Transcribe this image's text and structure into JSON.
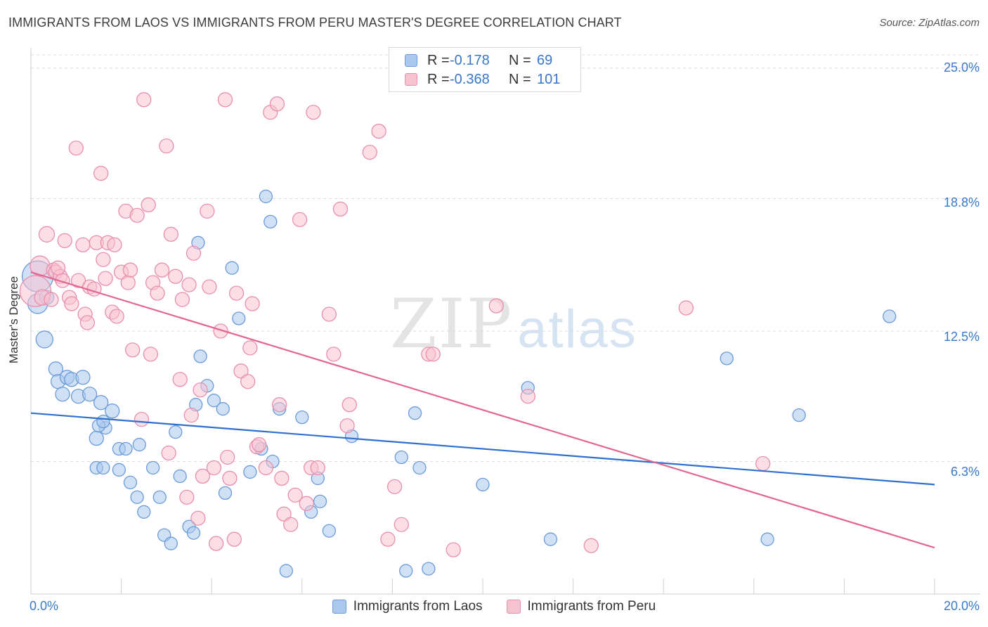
{
  "title": "IMMIGRANTS FROM LAOS VS IMMIGRANTS FROM PERU MASTER'S DEGREE CORRELATION CHART",
  "source": "Source: ZipAtlas.com",
  "watermark": {
    "zip": "ZIP",
    "atlas": "atlas"
  },
  "legend": {
    "rows": [
      {
        "r_label": "R =",
        "r_value": "-0.178",
        "n_label": "N =",
        "n_value": "69",
        "color": "#aac8ef",
        "border": "#6b9bd8"
      },
      {
        "r_label": "R =",
        "r_value": "-0.368",
        "n_label": "N =",
        "n_value": "101",
        "color": "#f7c2d2",
        "border": "#e98fac"
      }
    ]
  },
  "bottom_legend": [
    {
      "label": "Immigrants from Laos",
      "color": "#aac8ef",
      "border": "#6b9bd8"
    },
    {
      "label": "Immigrants from Peru",
      "color": "#f7c2d2",
      "border": "#e98fac"
    }
  ],
  "chart_data": {
    "type": "scatter",
    "title": "IMMIGRANTS FROM LAOS VS IMMIGRANTS FROM PERU MASTER'S DEGREE CORRELATION CHART",
    "xlabel": "",
    "ylabel": "Master's Degree",
    "xlim": [
      0,
      20
    ],
    "ylim": [
      0,
      25.9
    ],
    "x_tick_labels": [
      "0.0%",
      "20.0%"
    ],
    "y_ticks": [
      6.3,
      12.5,
      18.8,
      25.0
    ],
    "y_tick_labels": [
      "6.3%",
      "12.5%",
      "18.8%",
      "25.0%"
    ],
    "grid": true,
    "legend_position": "top-center",
    "series": [
      {
        "name": "Immigrants from Laos",
        "color": "#aac8ef",
        "stroke": "#6b9bd8",
        "line_color": "#2f6fd0",
        "trend": [
          [
            0,
            8.6
          ],
          [
            20,
            5.2
          ]
        ],
        "points": [
          [
            0.15,
            15.1,
            22
          ],
          [
            0.15,
            13.8,
            14
          ],
          [
            0.3,
            12.1,
            12
          ],
          [
            0.35,
            14.1,
            10
          ],
          [
            0.55,
            10.7,
            10
          ],
          [
            0.6,
            10.1,
            10
          ],
          [
            0.7,
            9.5,
            10
          ],
          [
            0.8,
            10.3,
            10
          ],
          [
            0.9,
            10.2,
            10
          ],
          [
            1.15,
            10.3,
            10
          ],
          [
            1.05,
            9.4,
            10
          ],
          [
            1.3,
            9.5,
            10
          ],
          [
            1.55,
            9.1,
            10
          ],
          [
            1.8,
            8.7,
            10
          ],
          [
            1.45,
            7.4,
            10
          ],
          [
            1.45,
            6.0,
            9
          ],
          [
            1.6,
            6.0,
            9
          ],
          [
            1.65,
            7.9,
            9
          ],
          [
            1.5,
            8.0,
            9
          ],
          [
            1.6,
            8.2,
            9
          ],
          [
            1.95,
            6.9,
            9
          ],
          [
            1.95,
            5.9,
            9
          ],
          [
            2.1,
            6.9,
            9
          ],
          [
            2.2,
            5.3,
            9
          ],
          [
            2.35,
            4.6,
            9
          ],
          [
            2.5,
            3.9,
            9
          ],
          [
            2.4,
            7.1,
            9
          ],
          [
            2.7,
            6.0,
            9
          ],
          [
            2.85,
            4.6,
            9
          ],
          [
            2.95,
            2.8,
            9
          ],
          [
            3.1,
            2.4,
            9
          ],
          [
            3.2,
            7.7,
            9
          ],
          [
            3.3,
            5.6,
            9
          ],
          [
            3.5,
            3.2,
            9
          ],
          [
            3.6,
            2.9,
            9
          ],
          [
            3.65,
            9.0,
            9
          ],
          [
            3.75,
            11.3,
            9
          ],
          [
            3.9,
            9.9,
            9
          ],
          [
            3.7,
            16.7,
            9
          ],
          [
            4.05,
            9.2,
            9
          ],
          [
            4.25,
            8.8,
            9
          ],
          [
            4.3,
            4.8,
            9
          ],
          [
            4.45,
            15.5,
            9
          ],
          [
            4.6,
            13.1,
            9
          ],
          [
            4.85,
            5.8,
            9
          ],
          [
            5.1,
            6.9,
            9
          ],
          [
            5.2,
            18.9,
            9
          ],
          [
            5.3,
            17.7,
            9
          ],
          [
            5.35,
            6.3,
            9
          ],
          [
            5.5,
            8.8,
            9
          ],
          [
            5.65,
            1.1,
            9
          ],
          [
            6.0,
            8.4,
            9
          ],
          [
            6.2,
            3.9,
            9
          ],
          [
            6.35,
            5.5,
            9
          ],
          [
            6.4,
            4.4,
            9
          ],
          [
            6.6,
            3.0,
            9
          ],
          [
            7.1,
            7.5,
            9
          ],
          [
            8.2,
            6.5,
            9
          ],
          [
            8.3,
            1.1,
            9
          ],
          [
            8.5,
            8.6,
            9
          ],
          [
            8.6,
            6.0,
            9
          ],
          [
            8.8,
            1.2,
            9
          ],
          [
            10.0,
            5.2,
            9
          ],
          [
            11.0,
            9.8,
            9
          ],
          [
            11.5,
            2.6,
            9
          ],
          [
            15.4,
            11.2,
            9
          ],
          [
            16.3,
            2.6,
            9
          ],
          [
            17.0,
            8.5,
            9
          ],
          [
            19.0,
            13.2,
            9
          ]
        ]
      },
      {
        "name": "Immigrants from Peru",
        "color": "#f7c2d2",
        "stroke": "#e98fac",
        "line_color": "#e36592",
        "trend": [
          [
            0,
            15.3
          ],
          [
            20,
            2.2
          ]
        ],
        "points": [
          [
            0.1,
            14.4,
            22
          ],
          [
            0.2,
            15.6,
            14
          ],
          [
            0.25,
            14.1,
            11
          ],
          [
            0.35,
            17.1,
            11
          ],
          [
            0.5,
            15.4,
            10
          ],
          [
            0.55,
            15.3,
            10
          ],
          [
            0.65,
            15.1,
            10
          ],
          [
            0.7,
            14.9,
            10
          ],
          [
            0.75,
            16.8,
            10
          ],
          [
            0.85,
            14.1,
            10
          ],
          [
            0.9,
            13.8,
            10
          ],
          [
            1.0,
            21.2,
            10
          ],
          [
            1.05,
            14.9,
            10
          ],
          [
            1.15,
            16.6,
            10
          ],
          [
            1.2,
            13.3,
            10
          ],
          [
            1.25,
            12.9,
            10
          ],
          [
            1.3,
            14.6,
            10
          ],
          [
            1.4,
            14.5,
            10
          ],
          [
            1.45,
            16.7,
            10
          ],
          [
            1.55,
            20.0,
            10
          ],
          [
            1.6,
            15.9,
            10
          ],
          [
            1.65,
            15.0,
            10
          ],
          [
            1.7,
            16.7,
            10
          ],
          [
            1.8,
            13.4,
            10
          ],
          [
            1.85,
            16.6,
            10
          ],
          [
            1.9,
            13.2,
            10
          ],
          [
            2.0,
            15.3,
            10
          ],
          [
            2.1,
            18.2,
            10
          ],
          [
            2.15,
            14.8,
            10
          ],
          [
            2.2,
            15.4,
            10
          ],
          [
            2.25,
            11.6,
            10
          ],
          [
            2.35,
            18.0,
            10
          ],
          [
            2.45,
            8.3,
            10
          ],
          [
            2.5,
            23.5,
            10
          ],
          [
            2.6,
            18.5,
            10
          ],
          [
            2.65,
            11.4,
            10
          ],
          [
            2.7,
            14.8,
            10
          ],
          [
            2.8,
            14.3,
            10
          ],
          [
            2.9,
            15.4,
            10
          ],
          [
            3.0,
            21.3,
            10
          ],
          [
            3.05,
            6.7,
            10
          ],
          [
            3.1,
            17.1,
            10
          ],
          [
            3.2,
            15.1,
            10
          ],
          [
            3.3,
            10.2,
            10
          ],
          [
            3.35,
            14.0,
            10
          ],
          [
            3.45,
            4.6,
            10
          ],
          [
            3.5,
            14.7,
            10
          ],
          [
            3.55,
            8.5,
            10
          ],
          [
            3.6,
            16.2,
            10
          ],
          [
            3.7,
            3.6,
            10
          ],
          [
            3.75,
            9.7,
            10
          ],
          [
            3.8,
            5.6,
            10
          ],
          [
            3.9,
            18.2,
            10
          ],
          [
            3.95,
            14.6,
            10
          ],
          [
            4.05,
            6.0,
            10
          ],
          [
            4.1,
            2.4,
            10
          ],
          [
            4.2,
            12.5,
            10
          ],
          [
            4.3,
            23.5,
            10
          ],
          [
            4.35,
            6.5,
            10
          ],
          [
            4.4,
            5.5,
            10
          ],
          [
            4.5,
            2.6,
            10
          ],
          [
            4.55,
            14.3,
            10
          ],
          [
            4.65,
            10.6,
            10
          ],
          [
            4.8,
            10.1,
            10
          ],
          [
            4.85,
            11.7,
            10
          ],
          [
            4.9,
            13.8,
            10
          ],
          [
            5.0,
            7.0,
            10
          ],
          [
            5.05,
            7.1,
            10
          ],
          [
            5.2,
            6.0,
            10
          ],
          [
            5.3,
            22.9,
            10
          ],
          [
            5.45,
            23.3,
            10
          ],
          [
            5.5,
            9.0,
            10
          ],
          [
            5.55,
            5.5,
            10
          ],
          [
            5.6,
            3.8,
            10
          ],
          [
            5.75,
            3.3,
            10
          ],
          [
            5.85,
            4.7,
            10
          ],
          [
            5.95,
            17.8,
            10
          ],
          [
            6.1,
            4.3,
            10
          ],
          [
            6.2,
            6.0,
            10
          ],
          [
            6.25,
            22.9,
            10
          ],
          [
            6.35,
            6.0,
            10
          ],
          [
            6.6,
            13.3,
            10
          ],
          [
            6.7,
            11.4,
            10
          ],
          [
            6.85,
            18.3,
            10
          ],
          [
            7.0,
            8.0,
            10
          ],
          [
            7.05,
            9.0,
            10
          ],
          [
            7.5,
            21.0,
            10
          ],
          [
            7.7,
            22.0,
            10
          ],
          [
            7.9,
            2.6,
            10
          ],
          [
            8.05,
            5.1,
            10
          ],
          [
            8.2,
            3.3,
            10
          ],
          [
            8.8,
            11.4,
            10
          ],
          [
            8.9,
            11.4,
            10
          ],
          [
            9.35,
            2.1,
            10
          ],
          [
            10.3,
            13.7,
            10
          ],
          [
            11.0,
            9.4,
            10
          ],
          [
            12.4,
            2.3,
            10
          ],
          [
            14.5,
            13.6,
            10
          ],
          [
            16.2,
            6.2,
            10
          ],
          [
            0.45,
            14.0,
            10
          ],
          [
            0.6,
            15.5,
            10
          ]
        ]
      }
    ]
  }
}
